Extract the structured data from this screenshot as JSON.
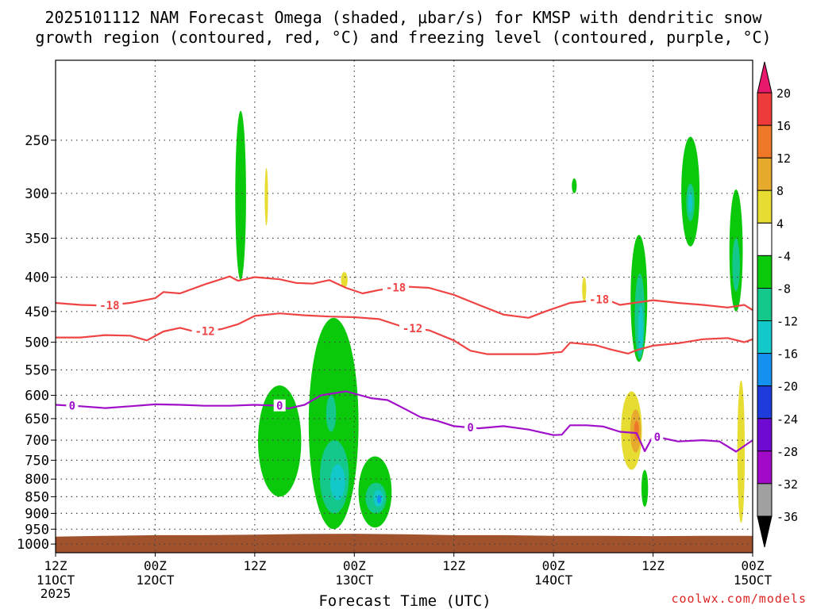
{
  "chart_data": {
    "type": "heatmap",
    "title_line1": "2025101112 NAM Forecast Omega (shaded, μbar/s) for KMSP with dendritic snow",
    "title_line2": "growth region (contoured, red, °C) and freezing level (contoured, purple, °C)",
    "xlabel": "Forecast Time (UTC)",
    "credit": "coolwx.com/models",
    "ylabel": "",
    "xlim_hours": [
      0,
      84
    ],
    "x_ticks": [
      {
        "hour": 0,
        "top": "12Z",
        "bottom": "11OCT",
        "extra": "2025"
      },
      {
        "hour": 12,
        "top": "00Z",
        "bottom": "12OCT",
        "extra": ""
      },
      {
        "hour": 24,
        "top": "12Z",
        "bottom": "",
        "extra": ""
      },
      {
        "hour": 36,
        "top": "00Z",
        "bottom": "13OCT",
        "extra": ""
      },
      {
        "hour": 48,
        "top": "12Z",
        "bottom": "",
        "extra": ""
      },
      {
        "hour": 60,
        "top": "00Z",
        "bottom": "14OCT",
        "extra": ""
      },
      {
        "hour": 72,
        "top": "12Z",
        "bottom": "",
        "extra": ""
      },
      {
        "hour": 84,
        "top": "00Z",
        "bottom": "15OCT",
        "extra": ""
      }
    ],
    "ylim_hpa": [
      1030,
      190
    ],
    "y_ticks": [
      250,
      300,
      350,
      400,
      450,
      500,
      550,
      600,
      650,
      700,
      750,
      800,
      850,
      900,
      950,
      1000
    ],
    "colorbar": {
      "labels": [
        "20",
        "16",
        "12",
        "8",
        "4",
        "-4",
        "-8",
        "-12",
        "-16",
        "-20",
        "-24",
        "-28",
        "-32",
        "-36"
      ],
      "colors": [
        "#e8186c",
        "#ee3a3a",
        "#ee7828",
        "#e6aa2d",
        "#e6dc32",
        "#ffffff",
        "#0ac80a",
        "#14c88c",
        "#12c8c8",
        "#1490f0",
        "#1e3cdc",
        "#6e0ad2",
        "#a00ac8",
        "#a0a0a0",
        "#000000"
      ]
    },
    "series": [
      {
        "name": "-18",
        "color": "#ee4444",
        "labels_at": [
          6.5,
          41,
          65.5
        ],
        "points": [
          [
            0,
            437
          ],
          [
            3,
            440
          ],
          [
            6,
            441
          ],
          [
            9,
            437
          ],
          [
            12,
            430
          ],
          [
            13,
            421
          ],
          [
            15,
            423
          ],
          [
            18,
            410
          ],
          [
            21,
            399
          ],
          [
            22,
            405
          ],
          [
            24,
            400
          ],
          [
            25,
            401
          ],
          [
            27,
            403
          ],
          [
            29,
            408
          ],
          [
            31,
            409
          ],
          [
            33,
            404
          ],
          [
            35,
            415
          ],
          [
            37,
            423
          ],
          [
            39,
            418
          ],
          [
            42,
            413
          ],
          [
            45,
            415
          ],
          [
            48,
            425
          ],
          [
            51,
            440
          ],
          [
            54,
            455
          ],
          [
            57,
            460
          ],
          [
            59,
            450
          ],
          [
            62,
            437
          ],
          [
            65,
            433
          ],
          [
            66,
            430
          ],
          [
            68,
            440
          ],
          [
            72,
            433
          ],
          [
            75,
            437
          ],
          [
            78,
            440
          ],
          [
            81,
            444
          ],
          [
            83,
            440
          ],
          [
            84,
            448
          ]
        ]
      },
      {
        "name": "-12",
        "color": "#ee4444",
        "labels_at": [
          18,
          43
        ],
        "points": [
          [
            0,
            492
          ],
          [
            3,
            492
          ],
          [
            6,
            488
          ],
          [
            9,
            489
          ],
          [
            11,
            497
          ],
          [
            13,
            482
          ],
          [
            15,
            476
          ],
          [
            17,
            483
          ],
          [
            20,
            478
          ],
          [
            22,
            470
          ],
          [
            24,
            457
          ],
          [
            27,
            453
          ],
          [
            30,
            456
          ],
          [
            33,
            458
          ],
          [
            36,
            459
          ],
          [
            39,
            462
          ],
          [
            42,
            475
          ],
          [
            45,
            480
          ],
          [
            48,
            497
          ],
          [
            50,
            515
          ],
          [
            52,
            521
          ],
          [
            55,
            521
          ],
          [
            58,
            521
          ],
          [
            61,
            517
          ],
          [
            62,
            501
          ],
          [
            65,
            505
          ],
          [
            67,
            513
          ],
          [
            69,
            520
          ],
          [
            70,
            514
          ],
          [
            72,
            506
          ],
          [
            75,
            502
          ],
          [
            78,
            495
          ],
          [
            81,
            493
          ],
          [
            83,
            500
          ],
          [
            84,
            495
          ]
        ]
      },
      {
        "name": "0",
        "color": "#a010c8",
        "labels_at": [
          2,
          27,
          50,
          72.5
        ],
        "points": [
          [
            0,
            620
          ],
          [
            3,
            623
          ],
          [
            6,
            627
          ],
          [
            9,
            623
          ],
          [
            12,
            619
          ],
          [
            15,
            620
          ],
          [
            18,
            622
          ],
          [
            21,
            622
          ],
          [
            24,
            620
          ],
          [
            27,
            622
          ],
          [
            28,
            628
          ],
          [
            30,
            620
          ],
          [
            32,
            600
          ],
          [
            35,
            592
          ],
          [
            38,
            606
          ],
          [
            40,
            610
          ],
          [
            42,
            628
          ],
          [
            44,
            647
          ],
          [
            46,
            655
          ],
          [
            48,
            667
          ],
          [
            51,
            672
          ],
          [
            54,
            667
          ],
          [
            57,
            675
          ],
          [
            60,
            688
          ],
          [
            61,
            687
          ],
          [
            62,
            665
          ],
          [
            64,
            665
          ],
          [
            66,
            668
          ],
          [
            68,
            680
          ],
          [
            70,
            683
          ],
          [
            71,
            727
          ],
          [
            72,
            690
          ],
          [
            75,
            703
          ],
          [
            78,
            700
          ],
          [
            80,
            703
          ],
          [
            82,
            728
          ],
          [
            84,
            700
          ]
        ]
      }
    ],
    "shaded": [
      {
        "color": "#0ac80a",
        "label": "-4 to -8",
        "regions": [
          {
            "name": "omega-cell-d1-12z-upper",
            "hour": 22.3,
            "hpa_top": 226,
            "hpa_bottom": 404,
            "width_h": 1.3
          },
          {
            "name": "omega-cell-d1-18z-mid",
            "hour": 27.0,
            "hpa_top": 580,
            "hpa_bottom": 850,
            "width_h": 5.2
          },
          {
            "name": "omega-cell-d1-23z-deep",
            "hour": 33.5,
            "hpa_top": 460,
            "hpa_bottom": 950,
            "width_h": 6.0
          },
          {
            "name": "omega-cell-d2-03z",
            "hour": 38.5,
            "hpa_top": 740,
            "hpa_bottom": 945,
            "width_h": 4.0
          },
          {
            "name": "omega-cell-d3-15z-upper",
            "hour": 62.5,
            "hpa_top": 285,
            "hpa_bottom": 300,
            "width_h": 0.6
          },
          {
            "name": "omega-cell-d3-10z-column",
            "hour": 70.3,
            "hpa_top": 346,
            "hpa_bottom": 535,
            "width_h": 2.0
          },
          {
            "name": "omega-cell-d3-10z-low",
            "hour": 71.0,
            "hpa_top": 775,
            "hpa_bottom": 880,
            "width_h": 0.8
          },
          {
            "name": "omega-cell-d3-16z-upper",
            "hour": 76.5,
            "hpa_top": 247,
            "hpa_bottom": 360,
            "width_h": 2.2
          },
          {
            "name": "omega-cell-d3-22z-upper",
            "hour": 82.0,
            "hpa_top": 296,
            "hpa_bottom": 450,
            "width_h": 1.6
          }
        ]
      },
      {
        "color": "#14c88c",
        "label": "-8 to -12",
        "regions": [
          {
            "name": "omega-core-d1-23z",
            "hour": 33.6,
            "hpa_top": 700,
            "hpa_bottom": 900,
            "width_h": 3.5
          },
          {
            "name": "omega-core-d1-22z-mid",
            "hour": 33.2,
            "hpa_top": 600,
            "hpa_bottom": 680,
            "width_h": 1.2
          },
          {
            "name": "omega-core-d2-03z",
            "hour": 38.6,
            "hpa_top": 810,
            "hpa_bottom": 900,
            "width_h": 2.5
          },
          {
            "name": "omega-core-d3-10z",
            "hour": 70.4,
            "hpa_top": 395,
            "hpa_bottom": 530,
            "width_h": 1.2
          },
          {
            "name": "omega-core-d3-16z",
            "hour": 76.5,
            "hpa_top": 290,
            "hpa_bottom": 330,
            "width_h": 1.0
          },
          {
            "name": "omega-core-d3-22z",
            "hour": 82.0,
            "hpa_top": 350,
            "hpa_bottom": 420,
            "width_h": 0.9
          }
        ]
      },
      {
        "color": "#12c8c8",
        "label": "-12 to -16",
        "regions": [
          {
            "name": "omega-peak-d1-23z",
            "hour": 34.0,
            "hpa_top": 760,
            "hpa_bottom": 860,
            "width_h": 1.8
          },
          {
            "name": "omega-peak-d2-03z",
            "hour": 38.9,
            "hpa_top": 830,
            "hpa_bottom": 880,
            "width_h": 1.2
          },
          {
            "name": "omega-peak-d3-10z",
            "hour": 70.5,
            "hpa_top": 440,
            "hpa_bottom": 520,
            "width_h": 0.6
          },
          {
            "name": "omega-peak-d3-16z",
            "hour": 76.5,
            "hpa_top": 300,
            "hpa_bottom": 320,
            "width_h": 0.5
          }
        ]
      },
      {
        "color": "#1490f0",
        "label": "-16 to -20",
        "regions": [
          {
            "name": "omega-max-d2-03z",
            "hour": 39.0,
            "hpa_top": 845,
            "hpa_bottom": 870,
            "width_h": 0.5
          }
        ]
      },
      {
        "color": "#e6dc32",
        "label": "4 to 8",
        "regions": [
          {
            "name": "omega-pos-d1-13z",
            "hour": 25.4,
            "hpa_top": 275,
            "hpa_bottom": 335,
            "width_h": 0.4
          },
          {
            "name": "omega-pos-d1-23z",
            "hour": 34.8,
            "hpa_top": 393,
            "hpa_bottom": 415,
            "width_h": 0.8
          },
          {
            "name": "omega-pos-d3-15z",
            "hour": 63.7,
            "hpa_top": 400,
            "hpa_bottom": 435,
            "width_h": 0.5
          },
          {
            "name": "omega-pos-d3-08z",
            "hour": 69.4,
            "hpa_top": 592,
            "hpa_bottom": 775,
            "width_h": 2.5
          },
          {
            "name": "omega-pos-d4-23z",
            "hour": 82.6,
            "hpa_top": 570,
            "hpa_bottom": 930,
            "width_h": 0.9
          }
        ]
      },
      {
        "color": "#e6aa2d",
        "label": "8 to 12",
        "regions": [
          {
            "name": "omega-pos2-d3-08z",
            "hour": 69.9,
            "hpa_top": 630,
            "hpa_bottom": 730,
            "width_h": 1.3
          }
        ]
      },
      {
        "color": "#ee7828",
        "label": "12 to 16",
        "regions": [
          {
            "name": "omega-pos3-d3-08z",
            "hour": 70.0,
            "hpa_top": 655,
            "hpa_bottom": 700,
            "width_h": 0.6
          }
        ]
      }
    ],
    "terrain": {
      "color": "#a0522d",
      "hpa_surface": [
        [
          0,
          975
        ],
        [
          6,
          972
        ],
        [
          12,
          970
        ],
        [
          18,
          970
        ],
        [
          24,
          968
        ],
        [
          30,
          966
        ],
        [
          36,
          965
        ],
        [
          42,
          967
        ],
        [
          48,
          970
        ],
        [
          54,
          970
        ],
        [
          60,
          972
        ],
        [
          66,
          972
        ],
        [
          72,
          973
        ],
        [
          78,
          972
        ],
        [
          84,
          972
        ]
      ],
      "hpa_bottom": 1030
    },
    "grid": true,
    "legend_position": "right"
  }
}
